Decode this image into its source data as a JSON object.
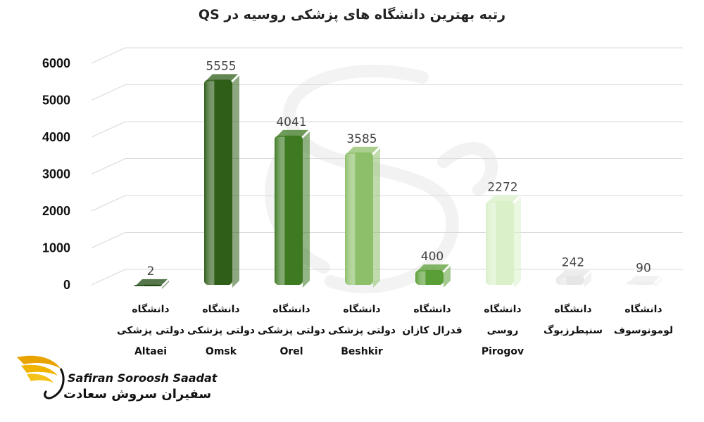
{
  "chart_data": {
    "type": "bar",
    "title": "رتبه بهترین دانشگاه های پزشکی روسیه در QS",
    "categories": [
      [
        "دانشگاه",
        "دولتی پزشکی",
        "Altaei"
      ],
      [
        "دانشگاه",
        "دولتی پزشکی",
        "Omsk"
      ],
      [
        "دانشگاه",
        "دولتی پزشکی",
        "Orel"
      ],
      [
        "دانشگاه",
        "دولتی پزشکی",
        "Beshkir"
      ],
      [
        "دانشگاه",
        "فدرال کازان"
      ],
      [
        "دانشگاه",
        "روسی",
        "Pirogov"
      ],
      [
        "دانشگاه",
        "سنپطرزبوگ"
      ],
      [
        "دانشگاه",
        "لومونوسوف"
      ]
    ],
    "values": [
      2,
      5555,
      4041,
      3585,
      400,
      2272,
      242,
      90
    ],
    "colors": [
      "#1e4a10",
      "#2f5e18",
      "#3d7a22",
      "#8dbf6a",
      "#5a9e36",
      "#d9f0c8",
      "#e6e6e6",
      "#eeeeee"
    ],
    "ylim": [
      0,
      6000
    ],
    "yticks": [
      0,
      1000,
      2000,
      3000,
      4000,
      5000,
      6000
    ],
    "xlabel": "",
    "ylabel": "",
    "grid": true,
    "style": "3d-cylinder"
  },
  "logo": {
    "text_en": "Safiran Soroosh Saadat",
    "text_fa": "سفیران سروش سعادت"
  }
}
